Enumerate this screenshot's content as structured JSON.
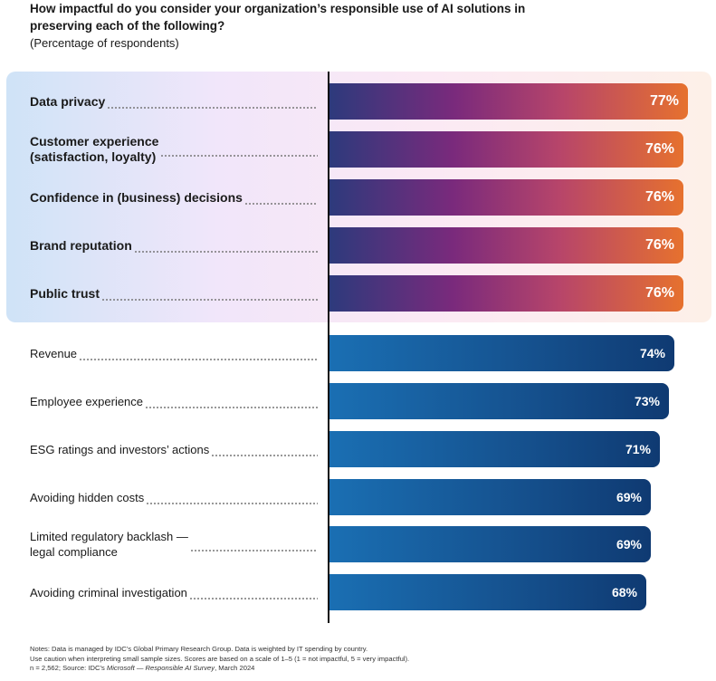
{
  "title": "How impactful do you consider your organization’s responsible use of AI solutions in preserving each of the following?",
  "subtitle": "(Percentage of respondents)",
  "chart_data": {
    "type": "bar",
    "orientation": "horizontal",
    "title": "How impactful do you consider your organization’s responsible use of AI solutions in preserving each of the following?",
    "subtitle": "(Percentage of respondents)",
    "unit": "%",
    "categories": [
      "Data privacy",
      "Customer experience\n(satisfaction, loyalty)",
      "Confidence in (business) decisions",
      "Brand reputation",
      "Public trust",
      "Revenue",
      "Employee experience",
      "ESG ratings and investors’ actions",
      "Avoiding hidden costs",
      "Limited regulatory backlash —\nlegal compliance",
      "Avoiding criminal investigation"
    ],
    "values": [
      77,
      76,
      76,
      76,
      76,
      74,
      73,
      71,
      69,
      69,
      68
    ],
    "value_labels": [
      "77%",
      "76%",
      "76%",
      "76%",
      "76%",
      "74%",
      "73%",
      "71%",
      "69%",
      "69%",
      "68%"
    ],
    "highlighted_count": 5,
    "colors": {
      "highlight_gradient": [
        "#2d3a7c",
        "#7a2a7c",
        "#b7456a",
        "#e6712e"
      ],
      "standard_gradient": [
        "#1a6fb3",
        "#15508d",
        "#0f3a72"
      ],
      "highlight_background": [
        "#cfe3f7",
        "#f1e6fa",
        "#fbe9f4",
        "#fdf0e8"
      ]
    }
  },
  "notes": {
    "line1": "Notes: Data is managed by IDC’s Global Primary Research Group. Data is weighted by IT spending by country.",
    "line2": "Use caution when interpreting small sample sizes. Scores are based on a scale of 1–5 (1 = not impactful, 5 = very impactful).",
    "line3_prefix": "n = 2,562; Source: IDC’s ",
    "line3_source": "Microsoft — Responsible AI Survey",
    "line3_suffix": ", March 2024"
  }
}
